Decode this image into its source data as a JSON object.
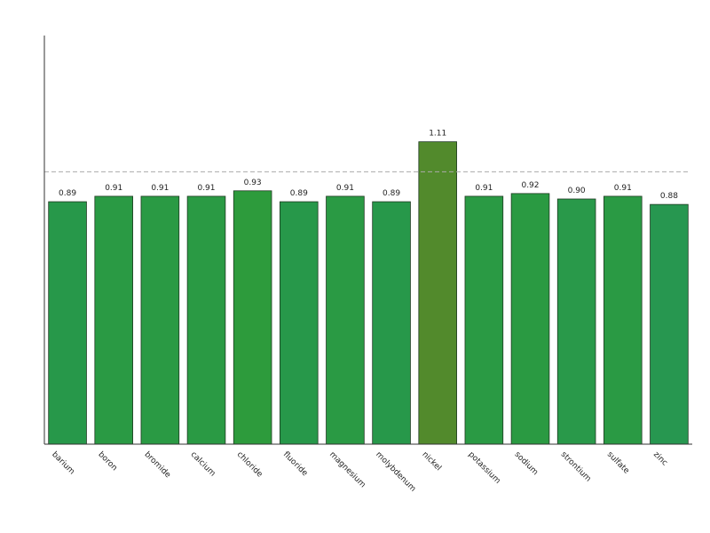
{
  "chart_data": {
    "type": "bar",
    "categories": [
      "barium",
      "boron",
      "bromide",
      "calcium",
      "chloride",
      "fluoride",
      "magnesium",
      "molybdenum",
      "nickel",
      "potassium",
      "sodium",
      "strontium",
      "sulfate",
      "zinc"
    ],
    "values": [
      0.89,
      0.91,
      0.91,
      0.91,
      0.93,
      0.89,
      0.91,
      0.89,
      1.11,
      0.91,
      0.92,
      0.9,
      0.91,
      0.88
    ],
    "value_labels": [
      "0.89",
      "0.91",
      "0.91",
      "0.91",
      "0.93",
      "0.89",
      "0.91",
      "0.89",
      "1.11",
      "0.91",
      "0.92",
      "0.90",
      "0.91",
      "0.88"
    ],
    "colors": [
      "#27984a",
      "#2a9a44",
      "#2a9a44",
      "#2a9a44",
      "#2d9b3c",
      "#27984a",
      "#2a9a44",
      "#27984a",
      "#528a2c",
      "#2a9a44",
      "#2a9a42",
      "#29994a",
      "#2a9a44",
      "#279750"
    ],
    "ylim": [
      0,
      1.5
    ],
    "reference_line": 1.0
  }
}
